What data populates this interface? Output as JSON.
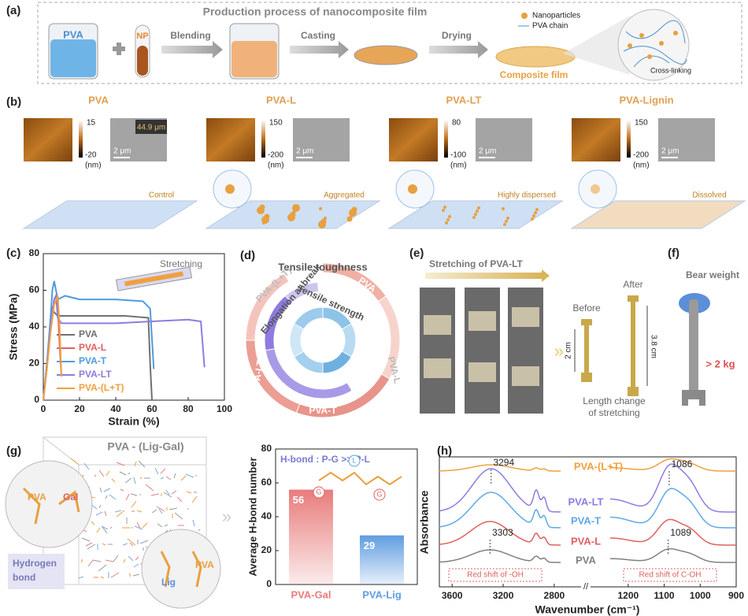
{
  "panel_a": {
    "label": "(a)",
    "title": "Production process of nanocomposite film",
    "pva": "PVA",
    "np": "NP",
    "steps": [
      "Blending",
      "Casting",
      "Drying"
    ],
    "product": "Composite film",
    "legend": [
      "Nanoparticles",
      "PVA chain"
    ],
    "inset": "Cross-linking"
  },
  "panel_b": {
    "label": "(b)",
    "samples": [
      {
        "name": "PVA",
        "max": 15,
        "min": -20,
        "unit": "(nm)",
        "scale": "2 μm",
        "state": "Control",
        "height": "44.9 μm"
      },
      {
        "name": "PVA-L",
        "max": 150,
        "min": -200,
        "unit": "(nm)",
        "scale": "2 μm",
        "state": "Aggregated"
      },
      {
        "name": "PVA-LT",
        "max": 80,
        "min": -100,
        "unit": "(nm)",
        "scale": "2 μm",
        "state": "Highly dispersed"
      },
      {
        "name": "PVA-Lignin",
        "max": 150,
        "min": -200,
        "unit": "(nm)",
        "scale": "2 μm",
        "state": "Dissolved"
      }
    ]
  },
  "panel_c": {
    "label": "(c)",
    "inset": "Stretching"
  },
  "panel_d": {
    "label": "(d)",
    "metrics": [
      "Tensile toughness",
      "Elongation at break",
      "Tensile strength"
    ],
    "samples": [
      "PVA",
      "PVA-L",
      "PVA-T",
      "PVA-LT",
      "PVA-(L+T)"
    ]
  },
  "panel_e": {
    "label": "(e)",
    "title": "Stretching of PVA-LT",
    "before": "Before",
    "after": "After",
    "before_len": "2 cm",
    "after_len": "3.8 cm",
    "caption": [
      "Length change",
      "of stretching"
    ]
  },
  "panel_f": {
    "label": "(f)",
    "title": "Bear weight",
    "load": "> 2 kg"
  },
  "panel_g": {
    "label": "(g)",
    "title": "PVA - (Lig-Gal)",
    "zoom1": [
      "PVA",
      "Gal"
    ],
    "zoom2": [
      "Lig",
      "PVA"
    ],
    "legend": [
      "Hydrogen",
      "bond"
    ]
  },
  "panel_h": {
    "label": "(h)"
  },
  "chart_data": [
    {
      "type": "line",
      "xlabel": "Strain (%)",
      "ylabel": "Stress (MPa)",
      "xlim": [
        0,
        100
      ],
      "xticks": [
        0,
        20,
        40,
        60,
        80,
        100
      ],
      "ylim": [
        0,
        80
      ],
      "yticks": [
        0,
        20,
        40,
        60,
        80
      ],
      "series": [
        {
          "name": "PVA",
          "color": "#707070",
          "x": [
            0,
            2,
            4,
            5,
            6,
            8,
            15,
            30,
            45,
            58,
            59,
            60
          ],
          "values": [
            0,
            20,
            42,
            50,
            48,
            46,
            46,
            46,
            46,
            45,
            20,
            0
          ]
        },
        {
          "name": "PVA-L",
          "color": "#e06060",
          "x": [
            0,
            2,
            4,
            6,
            7,
            8,
            9,
            10
          ],
          "values": [
            0,
            18,
            40,
            55,
            57,
            50,
            30,
            13
          ]
        },
        {
          "name": "PVA-T",
          "color": "#4f9be0",
          "x": [
            0,
            2,
            4,
            5,
            6,
            8,
            12,
            20,
            40,
            55,
            59,
            61
          ],
          "values": [
            0,
            20,
            45,
            60,
            65,
            55,
            57,
            55,
            55,
            54,
            50,
            17
          ]
        },
        {
          "name": "PVA-LT",
          "color": "#8f7be0",
          "x": [
            0,
            2,
            4,
            6,
            7,
            8,
            10,
            20,
            40,
            60,
            80,
            87,
            89
          ],
          "values": [
            0,
            18,
            40,
            55,
            57,
            45,
            42,
            42,
            42,
            43,
            44,
            43,
            18
          ]
        },
        {
          "name": "PVA-(L+T)",
          "color": "#f0a040",
          "x": [
            0,
            2,
            4,
            6,
            8,
            9,
            10
          ],
          "values": [
            0,
            17,
            37,
            52,
            57,
            40,
            13
          ]
        }
      ]
    },
    {
      "type": "bar",
      "ylabel": "Average H-bond number",
      "annotation": "H-bond : P-G >> P-L",
      "glyphs": [
        "G",
        "L",
        "G"
      ],
      "categories": [
        "PVA-Gal",
        "PVA-Lig"
      ],
      "values": [
        56,
        29
      ],
      "colors": [
        "#e87c7c",
        "#5f9de0"
      ],
      "ylim": [
        0,
        80
      ],
      "yticks": [
        0,
        20,
        40,
        60,
        80
      ]
    },
    {
      "type": "spectra",
      "xlabel": "Wavenumber (cm⁻¹)",
      "ylabel": "Absorbance",
      "segments": [
        {
          "xlim": [
            3700,
            2750
          ],
          "xticks": [
            3600,
            3200,
            2800
          ]
        },
        {
          "xlim": [
            1250,
            900
          ],
          "xticks": [
            1200,
            1100,
            1000,
            900
          ]
        }
      ],
      "series": [
        {
          "name": "PVA-(L+T)",
          "color": "#f0a040"
        },
        {
          "name": "PVA-LT",
          "color": "#8f7be0"
        },
        {
          "name": "PVA-T",
          "color": "#5fa8e8"
        },
        {
          "name": "PVA-L",
          "color": "#e06060"
        },
        {
          "name": "PVA",
          "color": "#808080"
        }
      ],
      "peaks_top": [
        3294,
        1086
      ],
      "peaks_bottom": [
        3303,
        1089
      ],
      "notes": [
        "Red shift of -OH",
        "Red shift of C-OH"
      ]
    }
  ]
}
